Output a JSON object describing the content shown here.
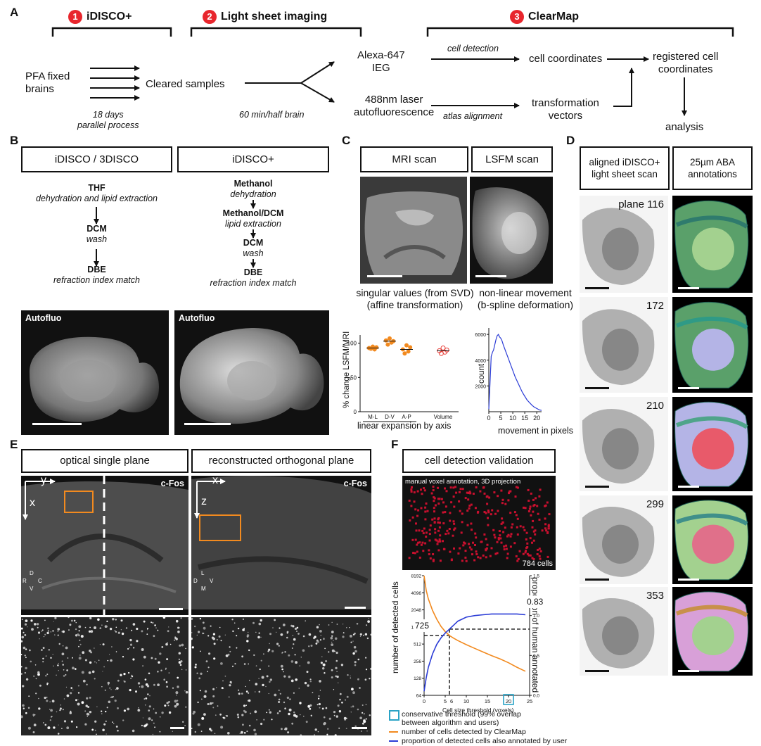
{
  "panels": {
    "A": "A",
    "B": "B",
    "C": "C",
    "D": "D",
    "E": "E",
    "F": "F"
  },
  "a": {
    "step1": {
      "num": "1",
      "label": "iDISCO+"
    },
    "step2": {
      "num": "2",
      "label": "Light sheet imaging"
    },
    "step3": {
      "num": "3",
      "label": "ClearMap"
    },
    "pfa": "PFA fixed\nbrains",
    "cleared": "Cleared samples",
    "days": "18 days\nparallel process",
    "time": "60 min/half brain",
    "alexa": "Alexa-647\nIEG",
    "laser": "488nm laser\nautofluorescence",
    "cell_detection": "cell detection",
    "atlas_alignment": "atlas alignment",
    "cell_coords": "cell coordinates",
    "transform": "transformation\nvectors",
    "registered": "registered cell\ncoordinates",
    "analysis": "analysis"
  },
  "b": {
    "box1": "iDISCO / 3DISCO",
    "box2": "iDISCO+",
    "left_steps": [
      {
        "name": "THF",
        "desc": "dehydration and lipid extraction"
      },
      {
        "name": "DCM",
        "desc": "wash"
      },
      {
        "name": "DBE",
        "desc": "refraction index match"
      }
    ],
    "right_steps": [
      {
        "name": "Methanol",
        "desc": "dehydration"
      },
      {
        "name": "Methanol/DCM",
        "desc": "lipid extraction"
      },
      {
        "name": "DCM",
        "desc": "wash"
      },
      {
        "name": "DBE",
        "desc": "refraction index match"
      }
    ],
    "img_label_left": "Autofluo",
    "img_label_right": "Autofluo"
  },
  "c": {
    "box1": "MRI scan",
    "box2": "LSFM scan",
    "cap1": "singular values (from SVD)\n(affine transformation)",
    "cap2": "non-linear movement\n(b-spline deformation)",
    "ylabel_left": "% change LSFM/MRI",
    "xlabel_left": "linear expansion by axis",
    "ylabel_right": "count",
    "xlabel_right": "movement in pixels"
  },
  "chart_data": [
    {
      "type": "scatter",
      "categories": [
        "M-L",
        "D-V",
        "A-P",
        "Volume"
      ],
      "ylabel": "% change LSFM/MRI",
      "xlabel": "linear expansion by axis",
      "ylim": [
        0,
        100
      ],
      "yticks": [
        0,
        50,
        100
      ],
      "series": [
        {
          "values": [
            [
              93,
              92,
              95,
              91,
              94
            ],
            [
              104,
              98,
              107,
              101,
              103
            ],
            [
              91,
              85,
              97,
              88,
              94
            ],
            [
              89,
              85,
              93,
              87,
              90
            ]
          ]
        }
      ],
      "means": [
        93,
        103,
        91,
        89
      ],
      "colors": [
        "#f28a1f",
        "#f28a1f",
        "#f28a1f",
        "#e8403a"
      ]
    },
    {
      "type": "line",
      "ylabel": "count",
      "xlabel": "movement in pixels",
      "xlim": [
        0,
        22
      ],
      "ylim": [
        0,
        6500
      ],
      "xticks": [
        0,
        5,
        10,
        15,
        20
      ],
      "yticks": [
        2000,
        4000,
        6000
      ],
      "x": [
        0,
        0.5,
        1,
        1.5,
        2,
        2.5,
        3,
        3.5,
        4,
        4.5,
        5,
        5.5,
        6,
        7,
        8,
        9,
        10,
        11,
        12,
        13,
        14,
        15,
        16,
        17,
        18,
        19,
        20,
        21,
        22
      ],
      "y": [
        200,
        2200,
        4300,
        4600,
        4800,
        5200,
        5600,
        5900,
        6000,
        5800,
        5700,
        5500,
        5200,
        4700,
        4200,
        3700,
        3200,
        2700,
        2300,
        1900,
        1500,
        1200,
        900,
        700,
        500,
        350,
        250,
        150,
        100
      ],
      "color": "#2b3cd6"
    },
    {
      "type": "line",
      "xlabel": "Cell size threshold (voxels)",
      "ylabel": "number of detected cells",
      "ylabel_right": "proportion of human annotated",
      "xlim": [
        0,
        25
      ],
      "xticks": [
        0,
        5,
        10,
        15,
        20,
        25
      ],
      "yticks_left": [
        64,
        128,
        256,
        512,
        1024,
        2048,
        4096,
        8192
      ],
      "yticks_right": [
        0.0,
        0.5,
        1.0,
        1.5
      ],
      "series": [
        {
          "name": "number of cells detected by ClearMap",
          "color": "#f28a1f",
          "x": [
            0,
            0.5,
            1,
            2,
            3,
            4,
            5,
            6,
            7,
            8,
            10,
            12,
            14,
            16,
            18,
            20,
            22,
            24
          ],
          "y": [
            8192,
            4500,
            3200,
            2000,
            1400,
            1050,
            850,
            725,
            650,
            590,
            500,
            430,
            370,
            320,
            280,
            240,
            200,
            170
          ]
        },
        {
          "name": "proportion of detected cells also annotated by user",
          "color": "#2b3cd6",
          "x": [
            0,
            0.5,
            1,
            2,
            3,
            4,
            5,
            6,
            7,
            8,
            10,
            12,
            14,
            16,
            18,
            20,
            22,
            24
          ],
          "y": [
            0.05,
            0.22,
            0.35,
            0.52,
            0.64,
            0.72,
            0.78,
            0.83,
            0.88,
            0.93,
            0.98,
            1.0,
            1.01,
            1.02,
            1.02,
            1.02,
            1.02,
            1.01
          ]
        }
      ],
      "annotation_left": "725",
      "annotation_right": "0.83",
      "annotation_x": "6",
      "threshold_x": 20
    }
  ],
  "d": {
    "box1": "aligned iDISCO+\nlight sheet scan",
    "box2": "25µm ABA\nannotations",
    "planes": [
      "plane 116",
      "172",
      "210",
      "299",
      "353"
    ]
  },
  "e": {
    "box1": "optical single plane",
    "box2": "reconstructed orthogonal plane",
    "cfos_left": "c-Fos",
    "cfos_right": "c-Fos",
    "axis_left": {
      "h": "y",
      "v": "x"
    },
    "axis_right": {
      "h": "x",
      "v": "z"
    },
    "compass_left": {
      "top": "D",
      "left": "R",
      "right": "C",
      "bottom": "V"
    },
    "compass_right": {
      "top": "L",
      "left": "D",
      "right": "V",
      "bottom": "M"
    }
  },
  "f": {
    "box": "cell detection validation",
    "img_caption": "manual voxel annotation, 3D projection",
    "cells": "784 cells",
    "legend": [
      {
        "text": "conservative threshold (99% overlap\nbetween algorithm and users)",
        "color": "#2aa3c6",
        "kind": "box"
      },
      {
        "text": "number of cells detected by ClearMap",
        "color": "#f28a1f",
        "kind": "line"
      },
      {
        "text": "proportion of detected cells also annotated by user",
        "color": "#2b3cd6",
        "kind": "line"
      }
    ]
  }
}
